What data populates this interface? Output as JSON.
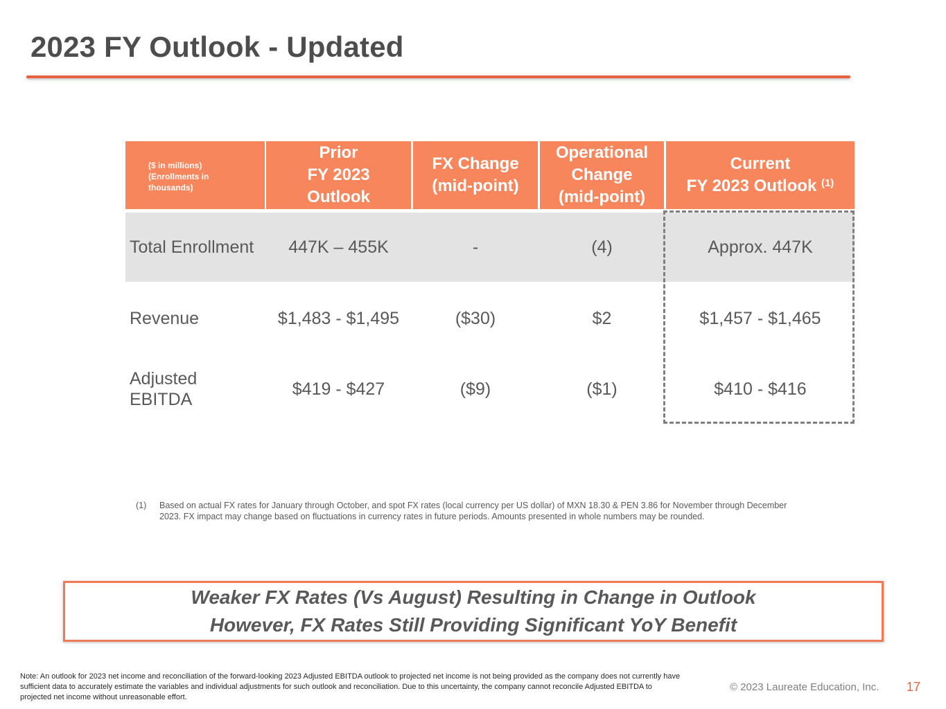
{
  "slide": {
    "title": "2023 FY Outlook - Updated",
    "page_number": "17",
    "copyright": "© 2023 Laureate Education, Inc."
  },
  "table": {
    "units_label": "($ in millions)\n(Enrollments in\nthousands)",
    "headers": {
      "prior": "Prior\nFY 2023\nOutlook",
      "fx": "FX Change\n(mid-point)",
      "operational": "Operational\nChange\n(mid-point)",
      "current": "Current\nFY 2023 Outlook",
      "current_footnote_ref": "(1)"
    },
    "rows": [
      {
        "label": "Total Enrollment",
        "prior": "447K – 455K",
        "fx": "-",
        "operational": "(4)",
        "current": "Approx. 447K"
      },
      {
        "label": "Revenue",
        "prior": "$1,483 - $1,495",
        "fx": "($30)",
        "operational": "$2",
        "current": "$1,457 - $1,465"
      },
      {
        "label": "Adjusted\nEBITDA",
        "prior": "$419 - $427",
        "fx": "($9)",
        "operational": "($1)",
        "current": "$410 - $416"
      }
    ]
  },
  "footnote": {
    "number": "(1)",
    "text": "Based on actual FX rates for January through October, and spot FX rates (local currency per US dollar) of MXN 18.30 & PEN 3.86 for November through December 2023. FX impact may change based on fluctuations in currency rates in future periods. Amounts presented in whole numbers may be rounded."
  },
  "callout": {
    "line1": "Weaker FX Rates (Vs August) Resulting in Change in Outlook",
    "line2": "However, FX Rates Still Providing Significant YoY Benefit"
  },
  "note": "Note: An outlook for 2023 net income and reconciliation of the forward-looking 2023 Adjusted EBITDA outlook to projected net income is not being provided as the company does not currently have sufficient data to accurately estimate the variables and individual adjustments for such outlook and reconciliation.  Due to this uncertainty, the company cannot reconcile Adjusted EBITDA to projected net income without unreasonable effort.",
  "colors": {
    "accent": "#e8623d",
    "header_fill": "#f8865c",
    "row_shade": "#e3e3e3",
    "text": "#595959"
  }
}
